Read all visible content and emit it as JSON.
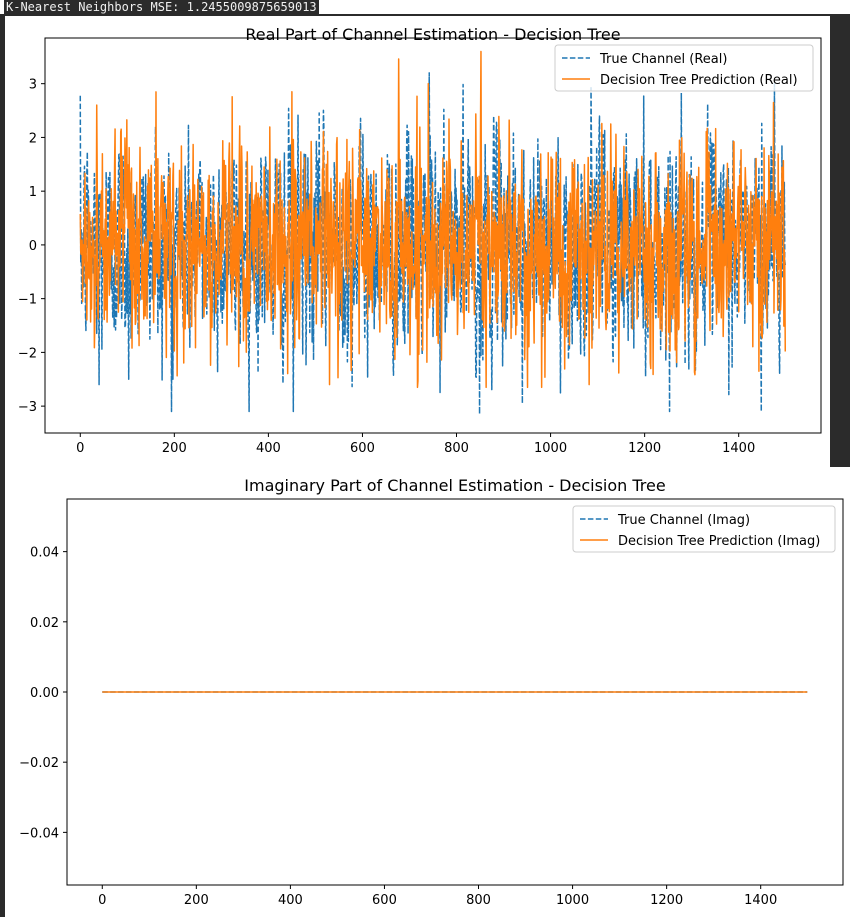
{
  "console": {
    "output_text": "K-Nearest Neighbors MSE: 1.2455009875659013"
  },
  "chart_data": [
    {
      "type": "line",
      "title": "Real Part of Channel Estimation - Decision Tree",
      "xlabel": "",
      "ylabel": "",
      "xlim": [
        -75,
        1575
      ],
      "ylim": [
        -3.5,
        3.85
      ],
      "x_ticks": [
        0,
        200,
        400,
        600,
        800,
        1000,
        1200,
        1400
      ],
      "y_ticks": [
        -3,
        -2,
        -1,
        0,
        1,
        2,
        3
      ],
      "grid": false,
      "legend_position": "top-right",
      "n_points": 1500,
      "series": [
        {
          "name": "True Channel (Real)",
          "color": "#1f77b4",
          "style": "dashed",
          "min": -3.1,
          "max": 3.2,
          "mean": 0.0,
          "std": 1.0,
          "peaks": [
            [
              40,
              -2.6
            ],
            [
              103,
              -2.5
            ],
            [
              160,
              2.2
            ],
            [
              197,
              -2.5
            ],
            [
              453,
              -3.1
            ],
            [
              742,
              3.2
            ],
            [
              849,
              -3.15
            ],
            [
              940,
              -2.95
            ],
            [
              1448,
              -3.1
            ],
            [
              1476,
              3.0
            ]
          ]
        },
        {
          "name": "Decision Tree Prediction (Real)",
          "color": "#ff7f0e",
          "style": "solid",
          "min": -2.65,
          "max": 3.6,
          "mean": 0.0,
          "std": 0.95,
          "peaks": [
            [
              35,
              2.6
            ],
            [
              450,
              2.85
            ],
            [
              530,
              -2.6
            ],
            [
              740,
              3.0
            ],
            [
              852,
              3.6
            ],
            [
              1082,
              -2.6
            ],
            [
              1443,
              -2.35
            ],
            [
              1474,
              2.65
            ]
          ]
        }
      ]
    },
    {
      "type": "line",
      "title": "Imaginary Part of Channel Estimation - Decision Tree",
      "xlabel": "",
      "ylabel": "",
      "xlim": [
        -75,
        1575
      ],
      "ylim": [
        -0.055,
        0.055
      ],
      "x_ticks": [
        0,
        200,
        400,
        600,
        800,
        1000,
        1200,
        1400
      ],
      "y_ticks": [
        -0.04,
        -0.02,
        0.0,
        0.02,
        0.04
      ],
      "y_tick_labels": [
        "−0.04",
        "−0.02",
        "0.00",
        "0.02",
        "0.04"
      ],
      "grid": false,
      "legend_position": "top-right",
      "series": [
        {
          "name": "True Channel (Imag)",
          "color": "#1f77b4",
          "style": "dashed",
          "x": [
            0,
            1499
          ],
          "values": [
            0,
            0
          ]
        },
        {
          "name": "Decision Tree Prediction (Imag)",
          "color": "#ff7f0e",
          "style": "solid",
          "x": [
            0,
            1499
          ],
          "values": [
            0,
            0
          ]
        }
      ]
    }
  ]
}
